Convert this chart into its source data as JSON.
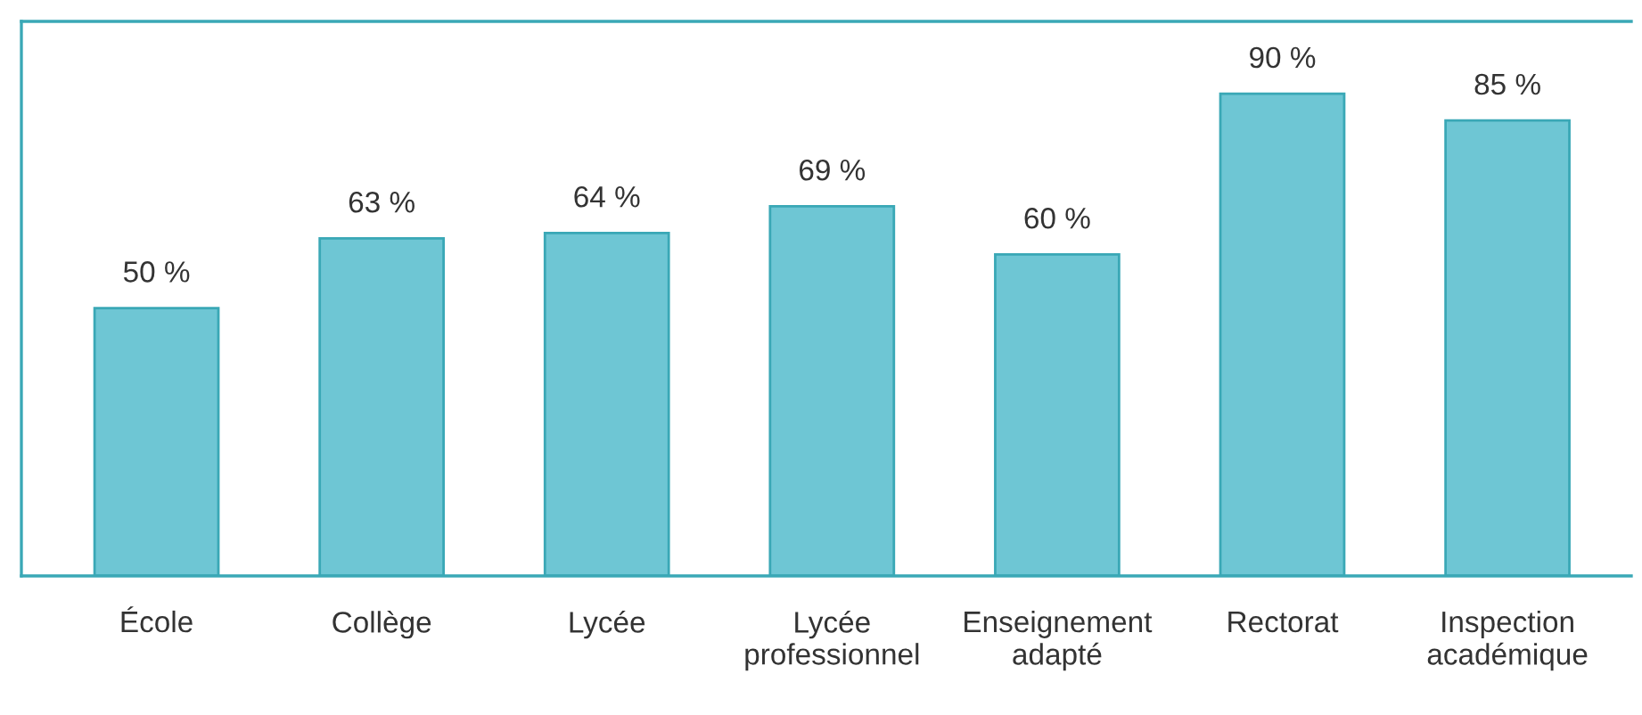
{
  "chart_data": {
    "type": "bar",
    "categories": [
      "École",
      "Collège",
      "Lycée",
      "Lycée\nprofessionnel",
      "Enseignement\nadapté",
      "Rectorat",
      "Inspection\nacadémique"
    ],
    "values": [
      50,
      63,
      64,
      69,
      60,
      90,
      85
    ],
    "value_labels": [
      "50 %",
      "63 %",
      "64 %",
      "69 %",
      "60 %",
      "90 %",
      "85 %"
    ],
    "color": "#6ec6d4",
    "grid": false,
    "legend": false
  }
}
